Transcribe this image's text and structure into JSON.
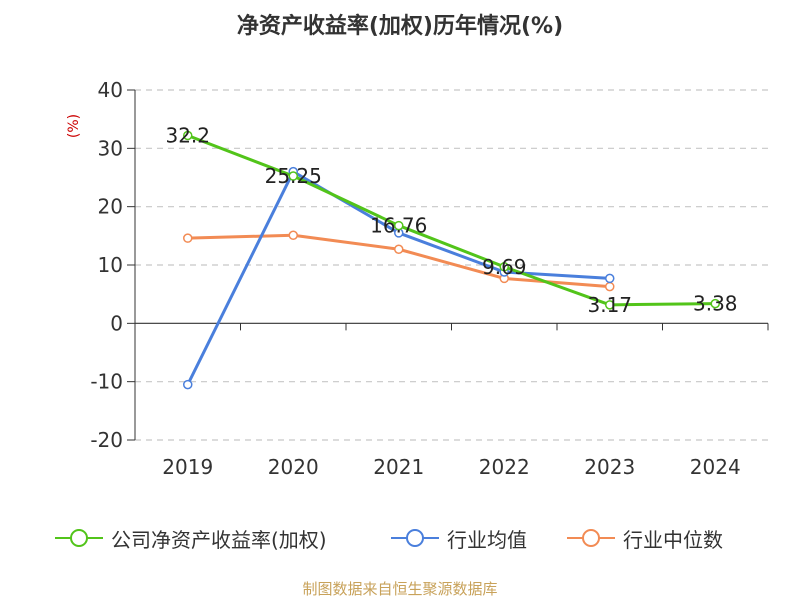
{
  "chart_data": {
    "type": "line",
    "title": "净资产收益率(加权)历年情况(%)",
    "ylabel": "(%)",
    "xlabel": "",
    "categories": [
      "2019",
      "2020",
      "2021",
      "2022",
      "2023",
      "2024"
    ],
    "ylim": [
      -20,
      40
    ],
    "yticks": [
      40,
      30,
      20,
      10,
      0,
      -10,
      -20
    ],
    "grid": true,
    "legend_position": "bottom",
    "series": [
      {
        "name": "公司净资产收益率(加权)",
        "color": "#52c41a",
        "values": [
          32.2,
          25.25,
          16.76,
          9.69,
          3.17,
          3.38
        ],
        "labels": [
          "32.2",
          "25.25",
          "16.76",
          "9.69",
          "3.17",
          "3.38"
        ]
      },
      {
        "name": "行业均值",
        "color": "#4a7fdc",
        "values": [
          -10.5,
          26.0,
          15.5,
          8.8,
          7.7,
          null
        ],
        "labels": []
      },
      {
        "name": "行业中位数",
        "color": "#f28b54",
        "values": [
          14.6,
          15.1,
          12.7,
          7.7,
          6.3,
          null
        ],
        "labels": []
      }
    ]
  },
  "source_note": "制图数据来自恒生聚源数据库"
}
